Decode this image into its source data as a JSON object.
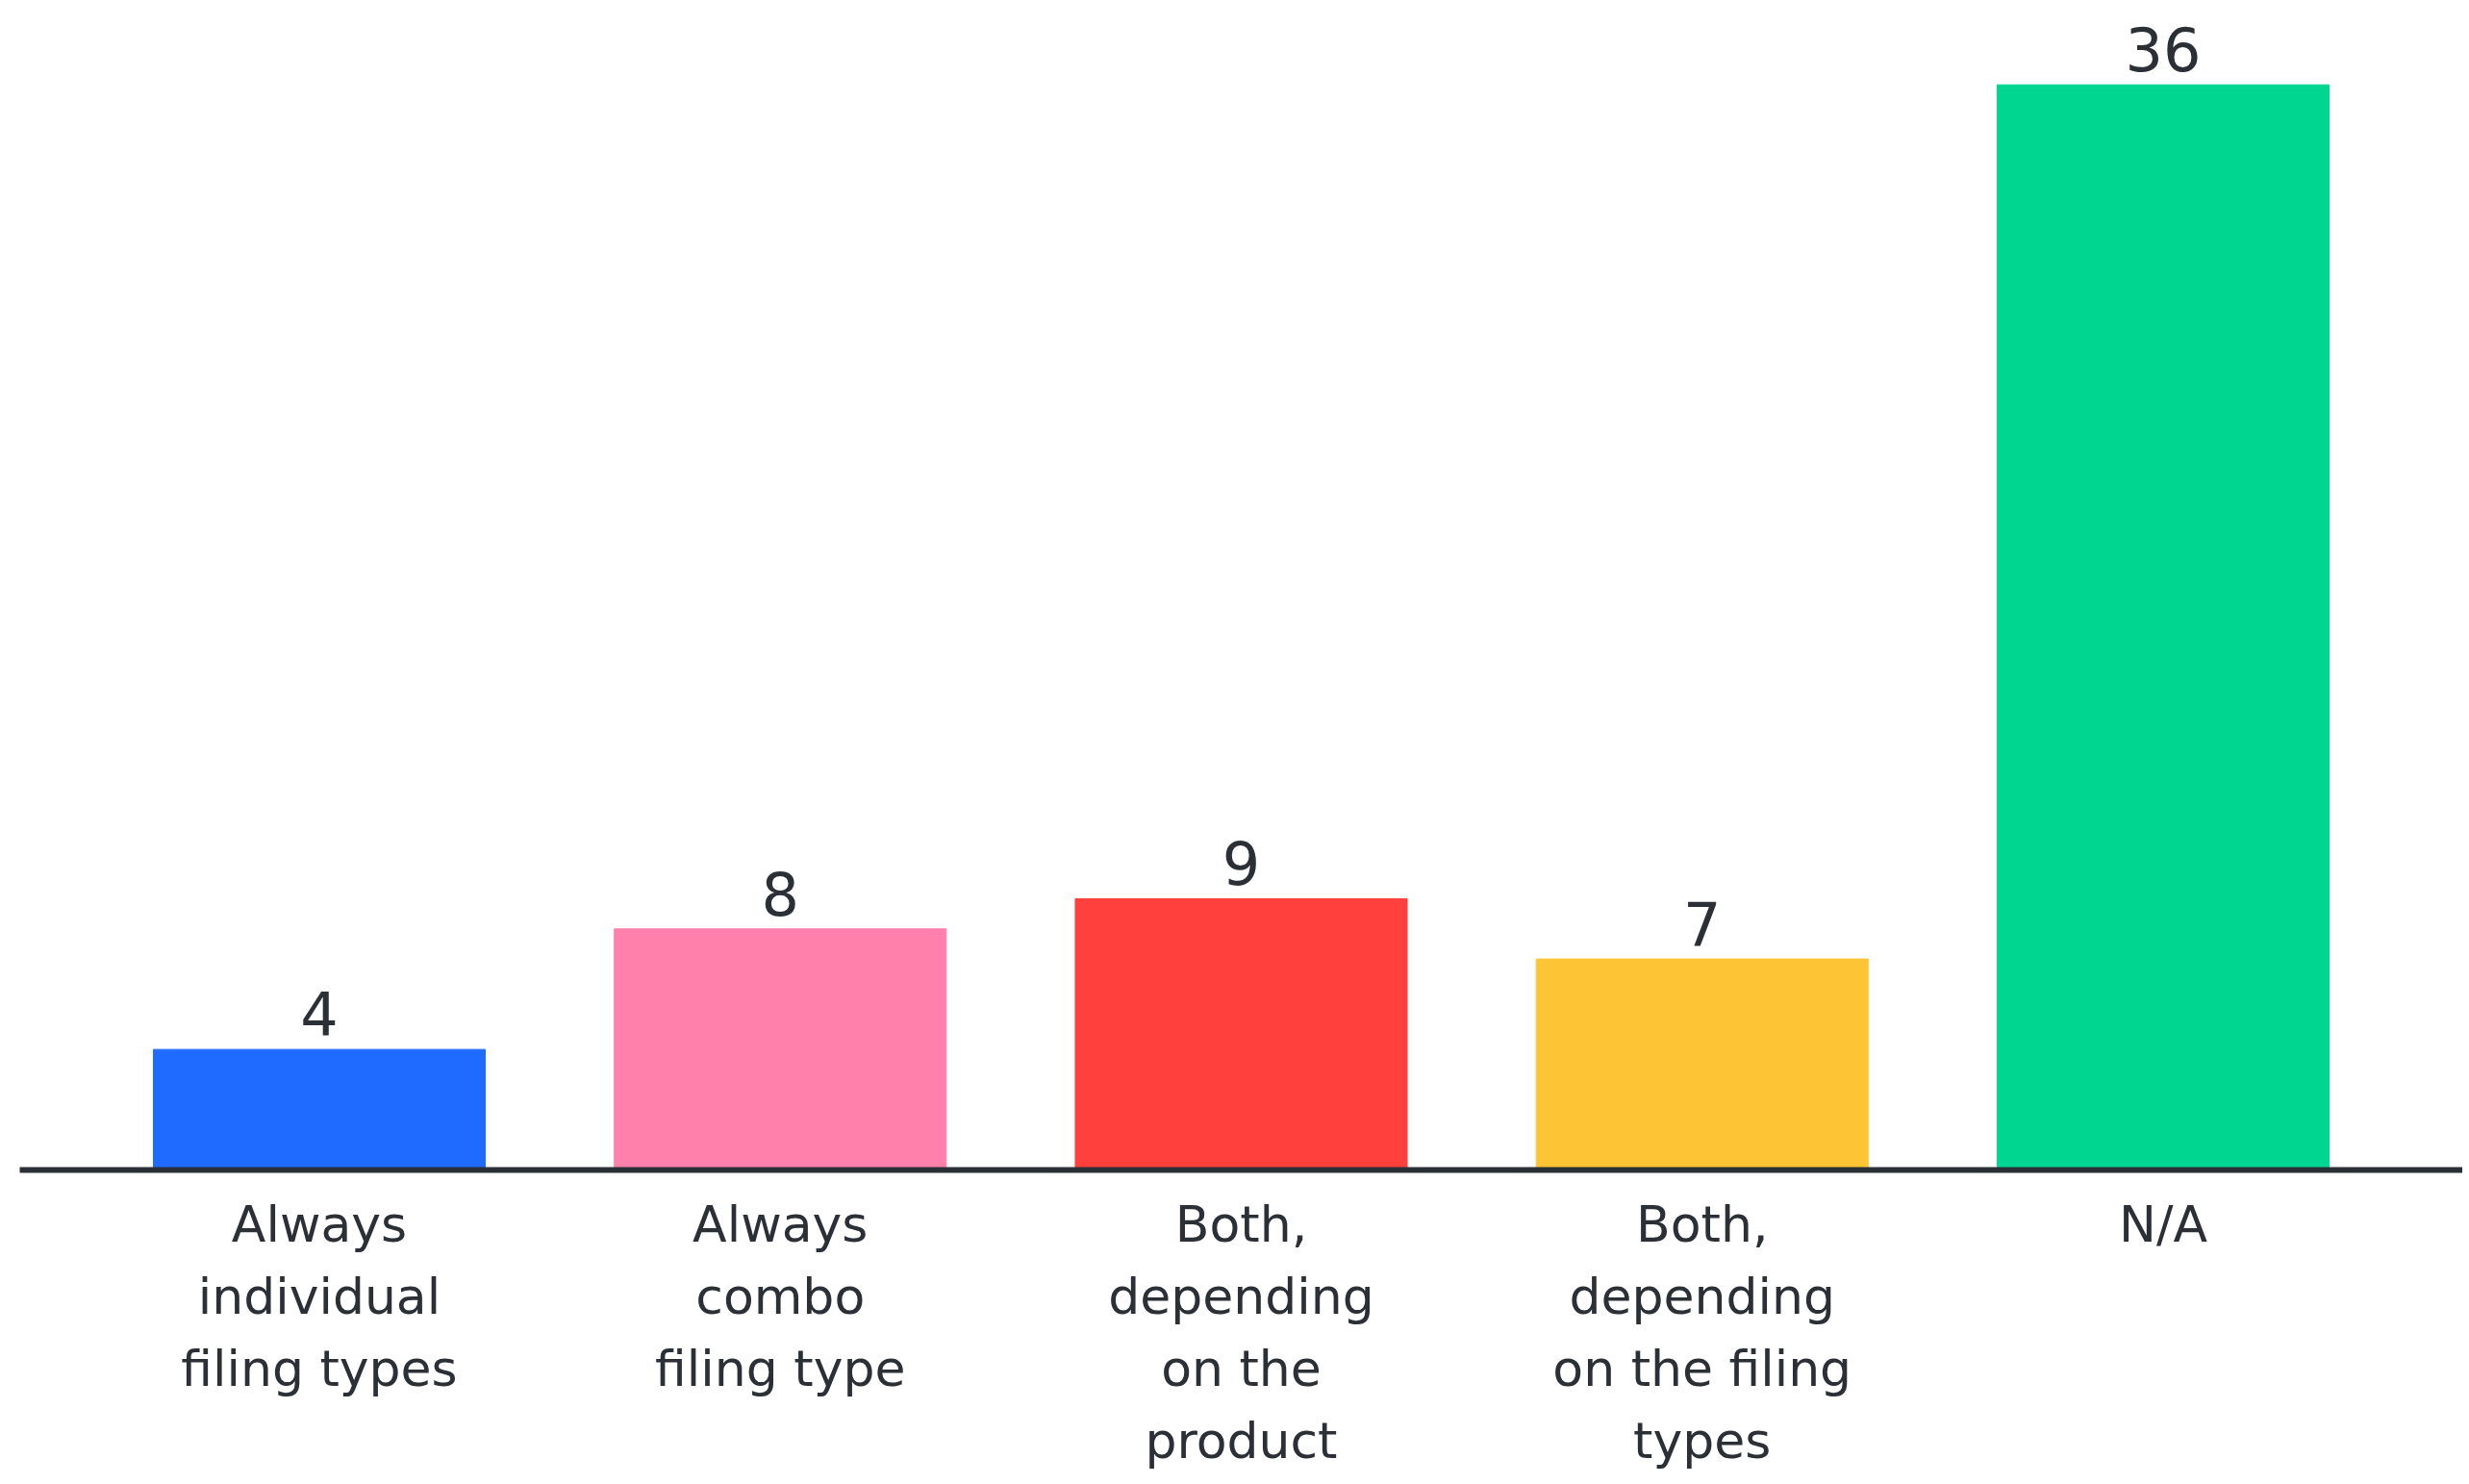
{
  "chart_data": {
    "type": "bar",
    "categories": [
      "Always\nindividual\nfiling types",
      "Always\ncombo\nfiling type",
      "Both,\ndepending\non the\nproduct",
      "Both,\ndepending\non the filing\ntypes",
      "N/A"
    ],
    "values": [
      4,
      8,
      9,
      7,
      36
    ],
    "colors": [
      "#1f6bff",
      "#ff80aa",
      "#ff403c",
      "#fdc535",
      "#00d68f"
    ],
    "data_labels": true,
    "grid": false
  }
}
